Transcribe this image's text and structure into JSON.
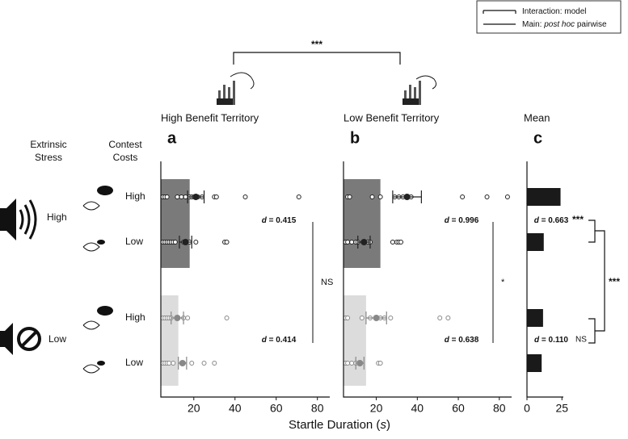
{
  "legend": [
    {
      "parts": [
        "Interaction: model"
      ]
    },
    {
      "parts": [
        "Main: ",
        "post hoc",
        " pairwise"
      ]
    }
  ],
  "top_significance": "***",
  "row_header": {
    "stress_lines": [
      "Extrinsic",
      "Stress"
    ],
    "cost_lines": [
      "Contest",
      "Costs"
    ],
    "stress_levels": [
      "High",
      "Low"
    ],
    "cost_levels": [
      "High",
      "Low",
      "High",
      "Low"
    ]
  },
  "xlabel_parts": [
    "Startle Duration (",
    "s",
    ")"
  ],
  "effect_symbol": "d",
  "chart_data": [
    {
      "type": "strip",
      "letter": "a",
      "title": "High Benefit Territory",
      "xlim": [
        4,
        86
      ],
      "xticks": [
        20,
        40,
        60,
        80
      ],
      "stress_means": [
        18,
        12.5
      ],
      "stress_colors": [
        "#7a7a7a",
        "#dcdcdc"
      ],
      "point_colors": [
        "#222222",
        "#888888"
      ],
      "rows": [
        {
          "points": [
            5,
            6,
            7,
            12,
            14,
            16,
            18,
            19,
            20,
            22,
            24,
            30,
            31,
            45,
            71
          ],
          "mean": 21,
          "se": 4
        },
        {
          "points": [
            5,
            6,
            7,
            8,
            9,
            10,
            11,
            15,
            18,
            21,
            35,
            36
          ],
          "mean": 16,
          "se": 3
        },
        {
          "points": [
            5,
            6,
            7,
            8,
            9,
            15,
            17,
            36
          ],
          "mean": 12,
          "se": 3
        },
        {
          "points": [
            5,
            6,
            7,
            8,
            10,
            15,
            19,
            25,
            30
          ],
          "mean": 14.5,
          "se": 2
        }
      ],
      "effect_sizes": [
        " = 0.415",
        " = 0.414"
      ],
      "significance": "NS"
    },
    {
      "type": "strip",
      "letter": "b",
      "title": "Low Benefit Territory",
      "xlim": [
        4,
        86
      ],
      "xticks": [
        20,
        40,
        60,
        80
      ],
      "stress_means": [
        22,
        15
      ],
      "stress_colors": [
        "#7a7a7a",
        "#dcdcdc"
      ],
      "point_colors": [
        "#222222",
        "#888888"
      ],
      "rows": [
        {
          "points": [
            6,
            7,
            18,
            22,
            29,
            31,
            33,
            35,
            37,
            62,
            74,
            84
          ],
          "mean": 35,
          "se": 7
        },
        {
          "points": [
            5,
            6,
            8,
            10,
            11,
            16,
            17,
            28,
            30,
            31,
            32
          ],
          "mean": 14,
          "se": 3
        },
        {
          "points": [
            5,
            6,
            13,
            17,
            20,
            22,
            24,
            27,
            51,
            55
          ],
          "mean": 20,
          "se": 5
        },
        {
          "points": [
            5,
            6,
            8,
            10,
            12,
            21,
            22
          ],
          "mean": 12,
          "se": 2
        }
      ],
      "effect_sizes": [
        " = 0.996",
        " = 0.638"
      ],
      "significance": "*"
    },
    {
      "type": "bar",
      "letter": "c",
      "title": "Mean",
      "xlim": [
        0,
        26
      ],
      "xticks": [
        0,
        25
      ],
      "color": "#1a1a1a",
      "values": [
        24,
        12,
        11.5,
        10.5
      ],
      "effect_sizes": [
        " = 0.663",
        " = 0.110"
      ],
      "significance": [
        "***",
        "NS",
        "***"
      ]
    }
  ]
}
